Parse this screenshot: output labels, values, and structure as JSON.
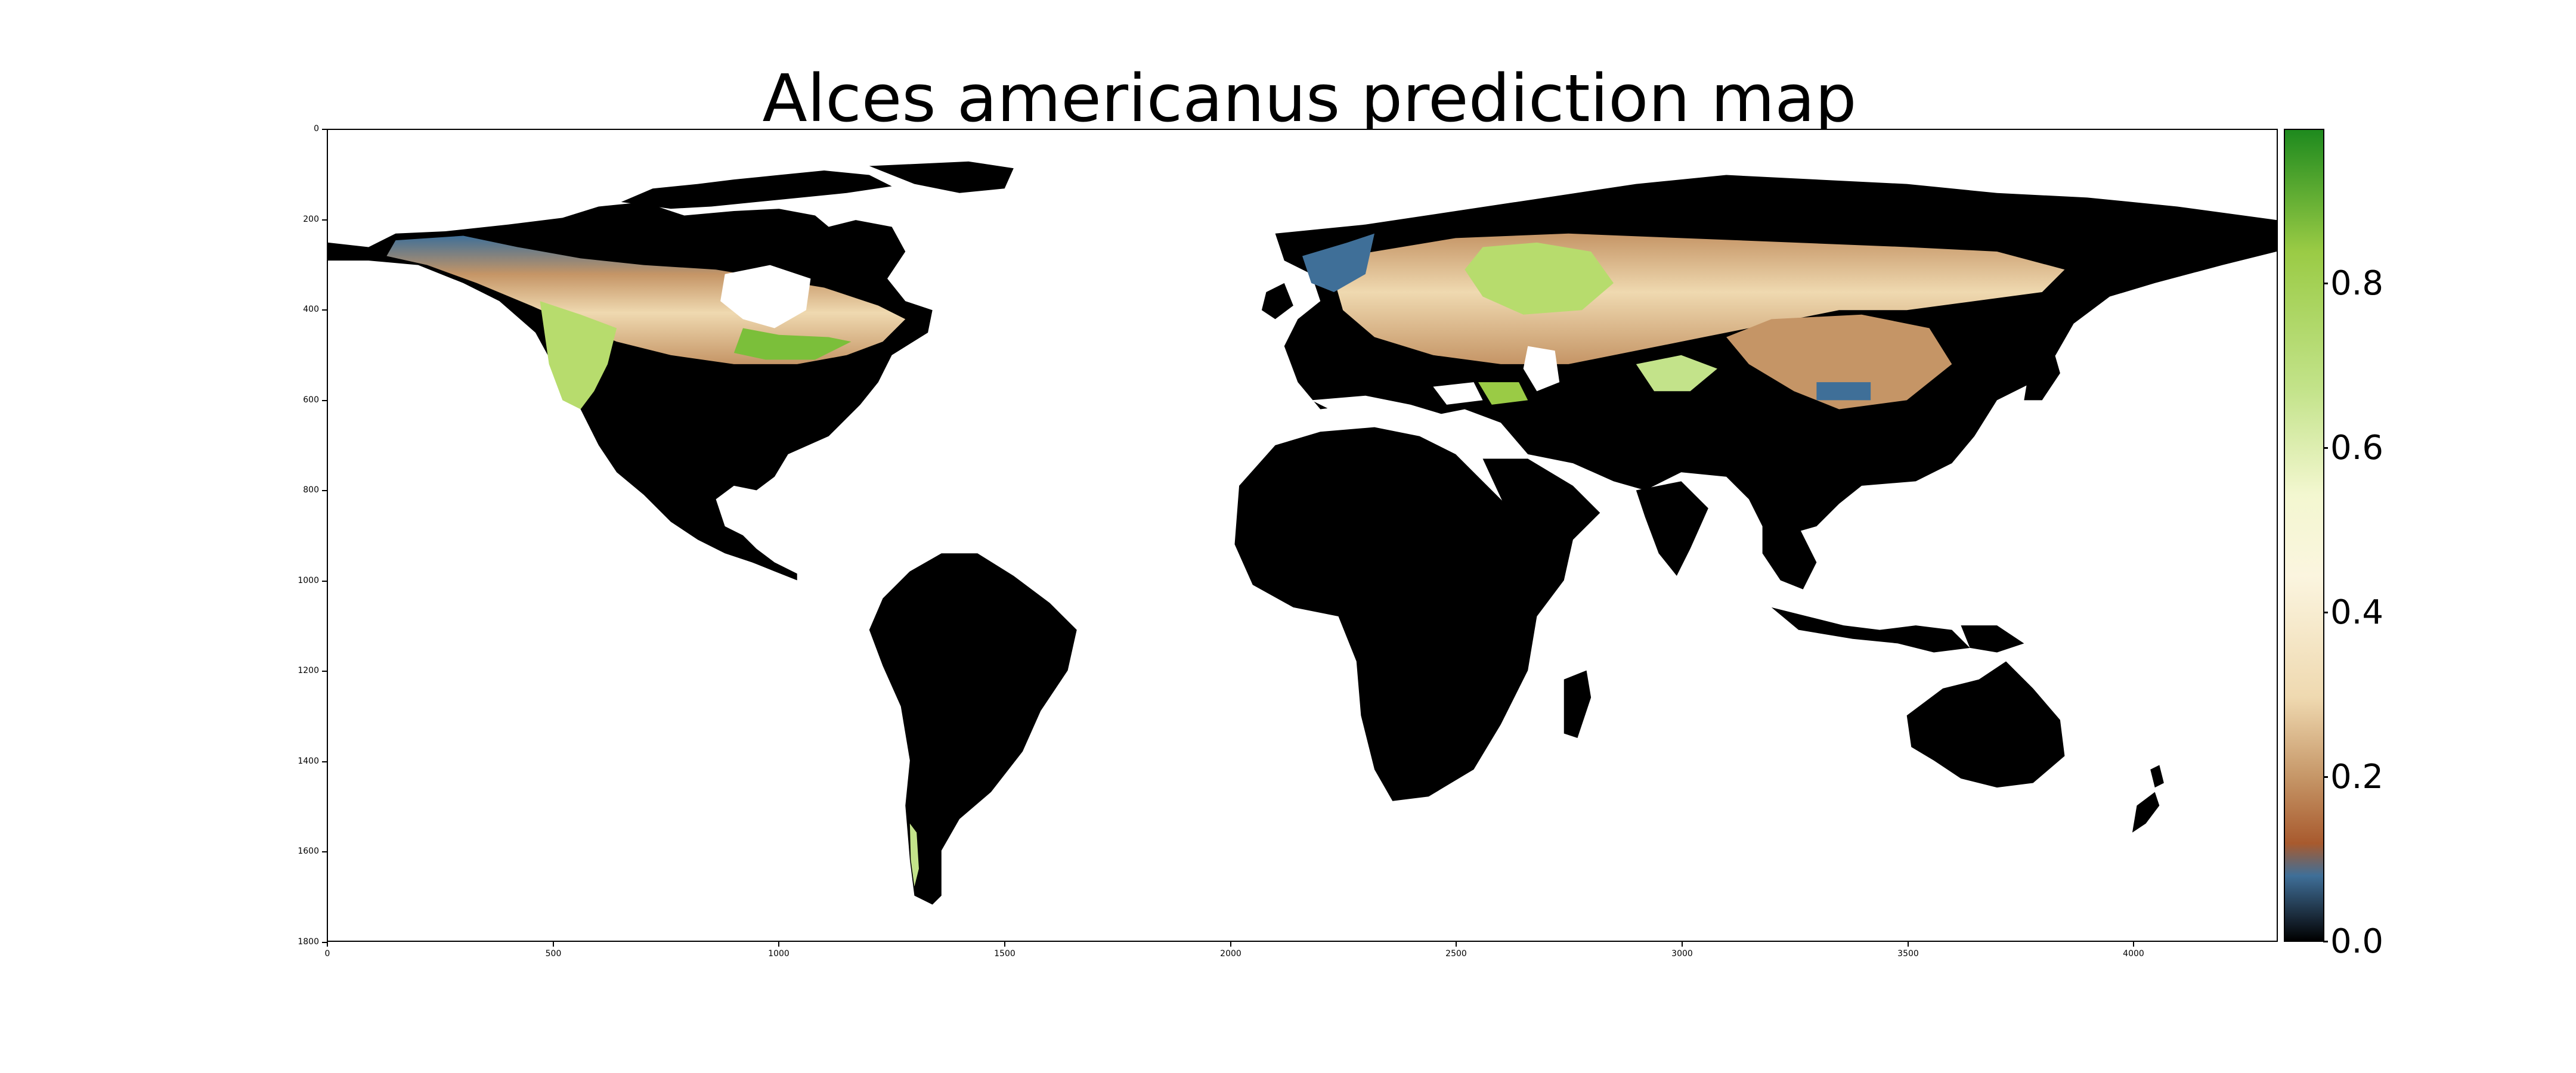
{
  "title": "Alces americanus prediction map",
  "map": {
    "type": "raster prediction map",
    "colormap": "black-blue-brown-cream-green",
    "colors": {
      "ocean": "#ffffff",
      "zero": "#000000",
      "low": "#3f6f98",
      "mid_low": "#a85a2e",
      "mid": "#efd9b0",
      "mid_high": "#fbf5df",
      "high": "#9acb45",
      "max": "#1e8a1e"
    },
    "x_ticks": [
      "0",
      "500",
      "1000",
      "1500",
      "2000",
      "2500",
      "3000",
      "3500",
      "4000"
    ],
    "y_ticks": [
      "0",
      "200",
      "400",
      "600",
      "800",
      "1000",
      "1200",
      "1400",
      "1600",
      "1800"
    ],
    "xlim": [
      0,
      4320
    ],
    "ylim": [
      1800,
      0
    ]
  },
  "colorbar": {
    "ticks": [
      "0.0",
      "0.2",
      "0.4",
      "0.6",
      "0.8"
    ],
    "range": [
      0,
      1
    ]
  }
}
